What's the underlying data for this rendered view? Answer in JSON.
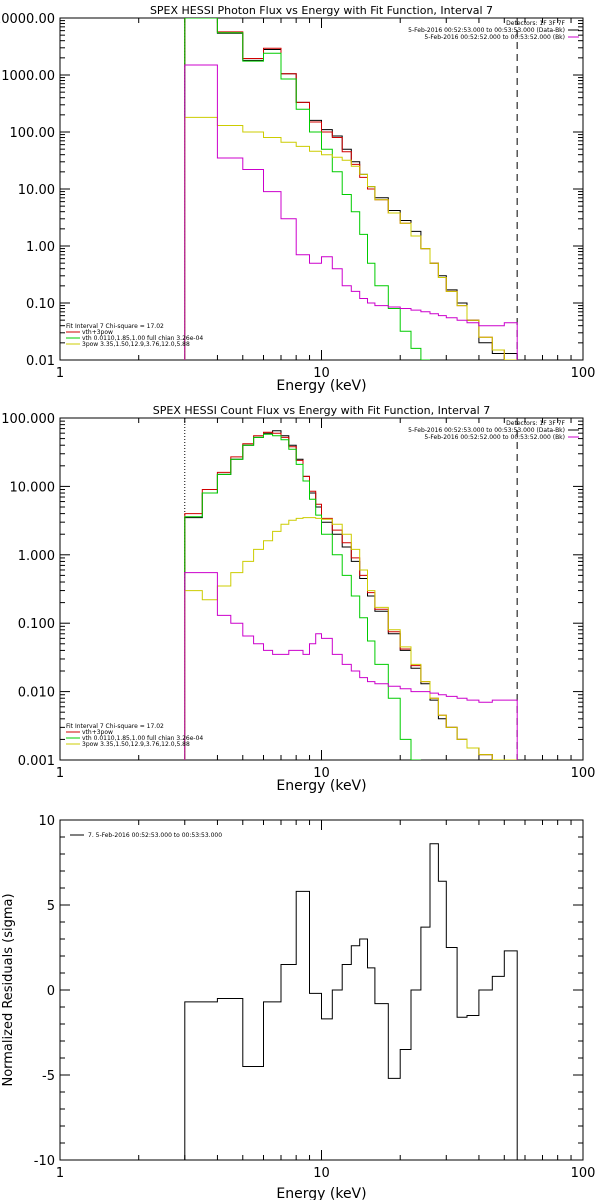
{
  "chart_data": [
    {
      "type": "line",
      "title": "SPEX HESSI Photon Flux vs Energy with Fit Function, Interval 7",
      "xlabel": "Energy (keV)",
      "ylabel": "",
      "x_scale": "log",
      "y_scale": "log",
      "xlim": [
        1,
        100
      ],
      "ylim": [
        0.01,
        10000
      ],
      "x_ticks": [
        1,
        10,
        100
      ],
      "x_tick_labels": [
        "1",
        "10",
        "100"
      ],
      "y_ticks": [
        0.01,
        0.1,
        1,
        10,
        100,
        1000,
        10000
      ],
      "y_tick_labels": [
        "0.01",
        "0.10",
        "1.00",
        "10.00",
        "100.00",
        "1000.00",
        "10000.00"
      ],
      "vlines": [
        {
          "x": 3.0,
          "style": "dotted"
        },
        {
          "x": 56,
          "style": "dashed"
        }
      ],
      "header_lines": [
        "Detectors: 1F 3F 7F",
        "5-Feb-2016 00:52:53.000 to 00:53:53.000 (Data-Bk)",
        "5-Feb-2016 00:52:52.000 to 00:53:52.000 (Bk)"
      ],
      "legend_lines": [
        {
          "text": "Fit Interval  7   Chi-square = 17.02",
          "color": ""
        },
        {
          "text": "vth+3pow",
          "color": "#d00000"
        },
        {
          "text": "vth 0.0110,1.85,1.00  full chian 3.26e-04",
          "color": "#00cc00"
        },
        {
          "text": "3pow 3.35,1.50,12.9,3.76,12.0,5.88",
          "color": "#cccc00"
        }
      ],
      "series": [
        {
          "name": "Data-Bk",
          "color": "#000000",
          "x": [
            3.0,
            4.0,
            5.0,
            6.0,
            7.0,
            8.0,
            9.0,
            10.0,
            11.0,
            12.0,
            13.0,
            14.0,
            15.0,
            16.0,
            18.0,
            20.0,
            22.0,
            24.0,
            26.0,
            28.0,
            30.0,
            33.0,
            36.0,
            40.0,
            45.0,
            50.0,
            56.0
          ],
          "y": [
            10000,
            5400,
            1800,
            2800,
            1050,
            330,
            160,
            110,
            85,
            50,
            30,
            18,
            11,
            7,
            4.2,
            2.8,
            1.8,
            0.9,
            0.5,
            0.3,
            0.17,
            0.1,
            0.05,
            0.02,
            0.013,
            0.013,
            0.013
          ]
        },
        {
          "name": "vth+3pow",
          "color": "#d00000",
          "x": [
            3.0,
            4.0,
            5.0,
            6.0,
            7.0,
            8.0,
            9.0,
            10.0,
            11.0,
            12.0,
            13.0,
            14.0,
            15.0,
            16.0,
            18.0,
            20.0,
            22.0,
            24.0,
            26.0,
            28.0,
            30.0,
            33.0,
            36.0,
            40.0,
            45.0,
            50.0,
            56.0
          ],
          "y": [
            10000,
            5700,
            1950,
            2950,
            1050,
            330,
            150,
            100,
            80,
            45,
            27,
            16,
            10,
            6.5,
            3.8,
            2.5,
            1.5,
            0.9,
            0.5,
            0.28,
            0.16,
            0.09,
            0.05,
            0.025,
            0.015,
            0.01,
            0.01
          ]
        },
        {
          "name": "vth",
          "color": "#00cc00",
          "x": [
            3.0,
            4.0,
            5.0,
            6.0,
            7.0,
            8.0,
            9.0,
            10.0,
            11.0,
            12.0,
            13.0,
            14.0,
            15.0,
            16.0,
            18.0,
            20.0,
            22.0,
            24.0,
            26.0
          ],
          "y": [
            10000,
            5500,
            1750,
            2400,
            850,
            250,
            100,
            50,
            20,
            8,
            4,
            1.6,
            0.5,
            0.2,
            0.08,
            0.032,
            0.016,
            0.01,
            0.01
          ]
        },
        {
          "name": "3pow",
          "color": "#cccc00",
          "x": [
            3.0,
            4.0,
            5.0,
            6.0,
            7.0,
            8.0,
            9.0,
            10.0,
            11.0,
            12.0,
            13.0,
            14.0,
            15.0,
            16.0,
            18.0,
            20.0,
            22.0,
            24.0,
            26.0,
            28.0,
            30.0,
            33.0,
            36.0,
            40.0,
            45.0,
            50.0,
            56.0
          ],
          "y": [
            180,
            130,
            100,
            80,
            66,
            56,
            46,
            40,
            36,
            32,
            25,
            18,
            11,
            6.5,
            3.8,
            2.5,
            1.5,
            0.9,
            0.5,
            0.28,
            0.16,
            0.09,
            0.05,
            0.025,
            0.015,
            0.01,
            0.01
          ]
        },
        {
          "name": "Bk",
          "color": "#cc00cc",
          "x": [
            3.0,
            4.0,
            5.0,
            6.0,
            7.0,
            8.0,
            9.0,
            10.0,
            11.0,
            12.0,
            13.0,
            14.0,
            15.0,
            16.0,
            18.0,
            20.0,
            22.0,
            24.0,
            26.0,
            28.0,
            30.0,
            33.0,
            36.0,
            40.0,
            45.0,
            50.0,
            56.0
          ],
          "y": [
            1500,
            35,
            22,
            9,
            3,
            0.7,
            0.5,
            0.65,
            0.4,
            0.2,
            0.16,
            0.12,
            0.1,
            0.09,
            0.085,
            0.08,
            0.075,
            0.07,
            0.065,
            0.06,
            0.055,
            0.05,
            0.045,
            0.04,
            0.04,
            0.045,
            0.045
          ]
        }
      ]
    },
    {
      "type": "line",
      "title": "SPEX HESSI Count Flux vs Energy with Fit Function, Interval 7",
      "xlabel": "Energy (keV)",
      "ylabel": "",
      "x_scale": "log",
      "y_scale": "log",
      "xlim": [
        1,
        100
      ],
      "ylim": [
        0.001,
        100
      ],
      "x_ticks": [
        1,
        10,
        100
      ],
      "x_tick_labels": [
        "1",
        "10",
        "100"
      ],
      "y_ticks": [
        0.001,
        0.01,
        0.1,
        1,
        10,
        100
      ],
      "y_tick_labels": [
        "0.001",
        "0.010",
        "0.100",
        "1.000",
        "10.000",
        "100.000"
      ],
      "vlines": [
        {
          "x": 3.0,
          "style": "dotted"
        },
        {
          "x": 56,
          "style": "dashed"
        }
      ],
      "header_lines": [
        "Detectors: 1F 3F 7F",
        "5-Feb-2016 00:52:53.000 to 00:53:53.000 (Data-Bk)",
        "5-Feb-2016 00:52:52.000 to 00:53:52.000 (Bk)"
      ],
      "legend_lines": [
        {
          "text": "Fit Interval  7   Chi-square = 17.02",
          "color": ""
        },
        {
          "text": "vth+3pow",
          "color": "#d00000"
        },
        {
          "text": "vth 0.0110,1.85,1.00  full chian 3.26e-04",
          "color": "#00cc00"
        },
        {
          "text": "3pow 3.35,1.50,12.9,3.76,12.0,5.88",
          "color": "#cccc00"
        }
      ],
      "series": [
        {
          "name": "Data-Bk",
          "color": "#000000",
          "x": [
            3.0,
            3.5,
            4.0,
            4.5,
            5.0,
            5.5,
            6.0,
            6.5,
            7.0,
            7.5,
            8.0,
            8.5,
            9.0,
            9.5,
            10.0,
            11.0,
            12.0,
            13.0,
            14.0,
            15.0,
            16.0,
            18.0,
            20.0,
            22.0,
            24.0,
            26.0,
            28.0,
            30.0,
            33.0,
            36.0,
            40.0,
            45.0,
            50.0,
            56.0
          ],
          "y": [
            3.5,
            8,
            15,
            25,
            40,
            52,
            60,
            65,
            55,
            40,
            25,
            14,
            8,
            5,
            3,
            2,
            1.3,
            0.8,
            0.45,
            0.25,
            0.15,
            0.07,
            0.04,
            0.022,
            0.013,
            0.0075,
            0.004,
            0.003,
            0.002,
            0.0015,
            0.0012,
            0.001,
            0.001,
            0.001
          ]
        },
        {
          "name": "vth+3pow",
          "color": "#d00000",
          "x": [
            3.0,
            3.5,
            4.0,
            4.5,
            5.0,
            5.5,
            6.0,
            6.5,
            7.0,
            7.5,
            8.0,
            8.5,
            9.0,
            9.5,
            10.0,
            11.0,
            12.0,
            13.0,
            14.0,
            15.0,
            16.0,
            18.0,
            20.0,
            22.0,
            24.0,
            26.0,
            28.0,
            30.0,
            33.0,
            36.0,
            40.0,
            45.0,
            50.0,
            56.0
          ],
          "y": [
            4,
            9,
            16,
            27,
            42,
            55,
            62,
            60,
            52,
            38,
            24,
            14,
            8.5,
            5.5,
            3.4,
            2.3,
            1.5,
            0.9,
            0.5,
            0.28,
            0.16,
            0.075,
            0.042,
            0.024,
            0.014,
            0.008,
            0.0045,
            0.003,
            0.002,
            0.0015,
            0.0012,
            0.001,
            0.001,
            0.001
          ]
        },
        {
          "name": "vth",
          "color": "#00cc00",
          "x": [
            3.0,
            3.5,
            4.0,
            4.5,
            5.0,
            5.5,
            6.0,
            6.5,
            7.0,
            7.5,
            8.0,
            8.5,
            9.0,
            9.5,
            10.0,
            11.0,
            12.0,
            13.0,
            14.0,
            15.0,
            16.0,
            18.0,
            20.0,
            22.0,
            24.0
          ],
          "y": [
            3.6,
            8,
            15,
            25,
            40,
            52,
            58,
            55,
            48,
            35,
            21,
            12,
            6.5,
            3.8,
            2.0,
            1.0,
            0.5,
            0.25,
            0.12,
            0.055,
            0.025,
            0.008,
            0.002,
            0.001,
            0.001
          ]
        },
        {
          "name": "3pow",
          "color": "#cccc00",
          "x": [
            3.0,
            3.5,
            4.0,
            4.5,
            5.0,
            5.5,
            6.0,
            6.5,
            7.0,
            7.5,
            8.0,
            8.5,
            9.0,
            9.5,
            10.0,
            11.0,
            12.0,
            13.0,
            14.0,
            15.0,
            16.0,
            18.0,
            20.0,
            22.0,
            24.0,
            26.0,
            28.0,
            30.0,
            33.0,
            36.0,
            40.0,
            45.0,
            50.0,
            56.0
          ],
          "y": [
            0.3,
            0.22,
            0.35,
            0.55,
            0.8,
            1.2,
            1.6,
            2.2,
            2.8,
            3.2,
            3.4,
            3.5,
            3.5,
            3.4,
            3.3,
            2.8,
            2.0,
            1.2,
            0.6,
            0.3,
            0.17,
            0.08,
            0.045,
            0.025,
            0.014,
            0.008,
            0.0045,
            0.003,
            0.002,
            0.0015,
            0.0012,
            0.001,
            0.001,
            0.001
          ]
        },
        {
          "name": "Bk",
          "color": "#cc00cc",
          "x": [
            3.0,
            3.5,
            4.0,
            4.5,
            5.0,
            5.5,
            6.0,
            6.5,
            7.0,
            7.5,
            8.0,
            8.5,
            9.0,
            9.5,
            10.0,
            11.0,
            12.0,
            13.0,
            14.0,
            15.0,
            16.0,
            18.0,
            20.0,
            22.0,
            24.0,
            26.0,
            28.0,
            30.0,
            33.0,
            36.0,
            40.0,
            45.0,
            50.0,
            56.0
          ],
          "y": [
            0.55,
            0.55,
            0.13,
            0.1,
            0.065,
            0.05,
            0.04,
            0.035,
            0.035,
            0.04,
            0.04,
            0.035,
            0.05,
            0.07,
            0.06,
            0.035,
            0.025,
            0.02,
            0.016,
            0.014,
            0.013,
            0.012,
            0.011,
            0.01,
            0.01,
            0.0095,
            0.009,
            0.0085,
            0.008,
            0.0075,
            0.007,
            0.0075,
            0.0075,
            0.0075
          ]
        }
      ]
    },
    {
      "type": "line",
      "title": "",
      "xlabel": "Energy (keV)",
      "ylabel": "Normalized Residuals (sigma)",
      "x_scale": "log",
      "y_scale": "linear",
      "xlim": [
        1,
        100
      ],
      "ylim": [
        -10,
        10
      ],
      "x_ticks": [
        1,
        10,
        100
      ],
      "x_tick_labels": [
        "1",
        "10",
        "100"
      ],
      "y_ticks": [
        -10,
        -5,
        0,
        5,
        10
      ],
      "y_tick_labels": [
        "-10",
        "-5",
        "0",
        "5",
        "10"
      ],
      "legend_lines": [
        {
          "text": "7.  5-Feb-2016 00:52:53.000 to 00:53:53.000",
          "color": "#000000"
        }
      ],
      "series": [
        {
          "name": "residuals",
          "color": "#000000",
          "x": [
            3.0,
            4.0,
            5.0,
            6.0,
            7.0,
            8.0,
            9.0,
            10.0,
            11.0,
            12.0,
            13.0,
            14.0,
            15.0,
            16.0,
            18.0,
            20.0,
            22.0,
            24.0,
            26.0,
            28.0,
            30.0,
            33.0,
            36.0,
            40.0,
            45.0,
            50.0,
            56.0
          ],
          "y": [
            -0.7,
            -0.5,
            -4.5,
            -0.7,
            1.5,
            5.8,
            -0.2,
            -1.7,
            0.0,
            1.5,
            2.6,
            3.0,
            1.3,
            -0.8,
            -5.2,
            -3.5,
            0.0,
            3.7,
            8.6,
            6.4,
            2.5,
            -1.6,
            -1.5,
            0.0,
            0.8,
            2.3,
            -10
          ]
        }
      ]
    }
  ]
}
